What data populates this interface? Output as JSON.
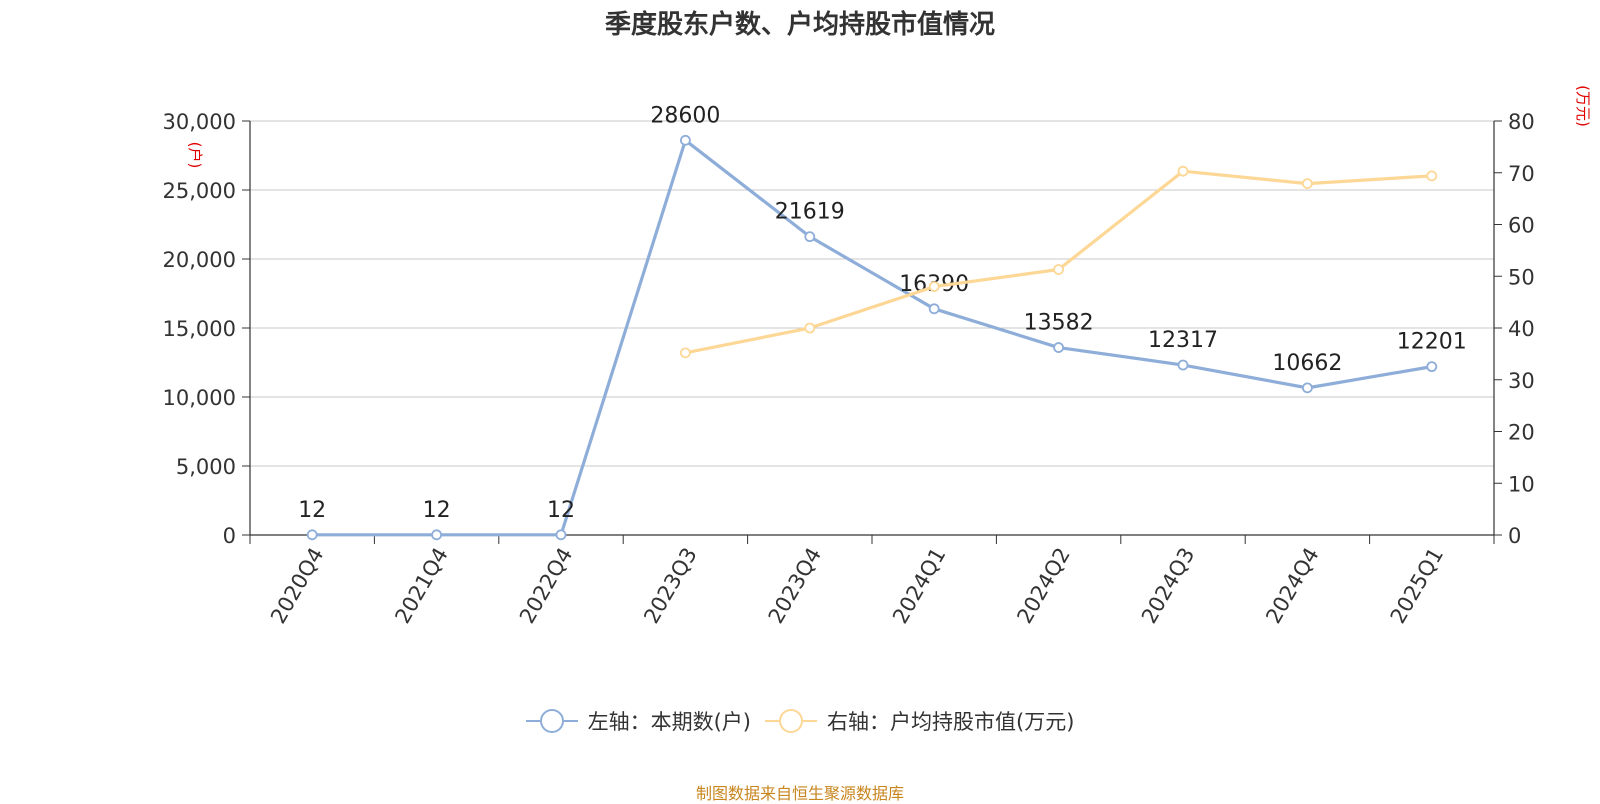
{
  "chart_data": {
    "type": "line",
    "title": "季度股东户数、户均持股市值情况",
    "categories": [
      "2020Q4",
      "2021Q4",
      "2022Q4",
      "2023Q3",
      "2023Q4",
      "2024Q1",
      "2024Q2",
      "2024Q3",
      "2024Q4",
      "2025Q1"
    ],
    "y_left": {
      "label": "(户)",
      "range": [
        0,
        30000
      ],
      "ticks": [
        "0",
        "5,000",
        "10,000",
        "15,000",
        "20,000",
        "25,000",
        "30,000"
      ]
    },
    "y_right": {
      "label": "(万元)",
      "range": [
        0,
        80
      ],
      "ticks": [
        "0",
        "10",
        "20",
        "30",
        "40",
        "50",
        "60",
        "70",
        "80"
      ]
    },
    "grid": true,
    "legend_position": "bottom",
    "series": [
      {
        "name": "左轴：本期数(户)",
        "axis": "left",
        "color": "#8eaed9",
        "values": [
          12,
          12,
          12,
          28600,
          21619,
          16390,
          13582,
          12317,
          10662,
          12201
        ],
        "labels": [
          "12",
          "12",
          "12",
          "28600",
          "21619",
          "16390",
          "13582",
          "12317",
          "10662",
          "12201"
        ]
      },
      {
        "name": "右轴：户均持股市值(万元)",
        "axis": "right",
        "color": "#fdd795",
        "values": [
          null,
          null,
          null,
          35.2,
          40.0,
          48.0,
          51.3,
          70.3,
          67.9,
          69.4
        ]
      }
    ]
  },
  "footer": {
    "source": "制图数据来自恒生聚源数据库"
  }
}
